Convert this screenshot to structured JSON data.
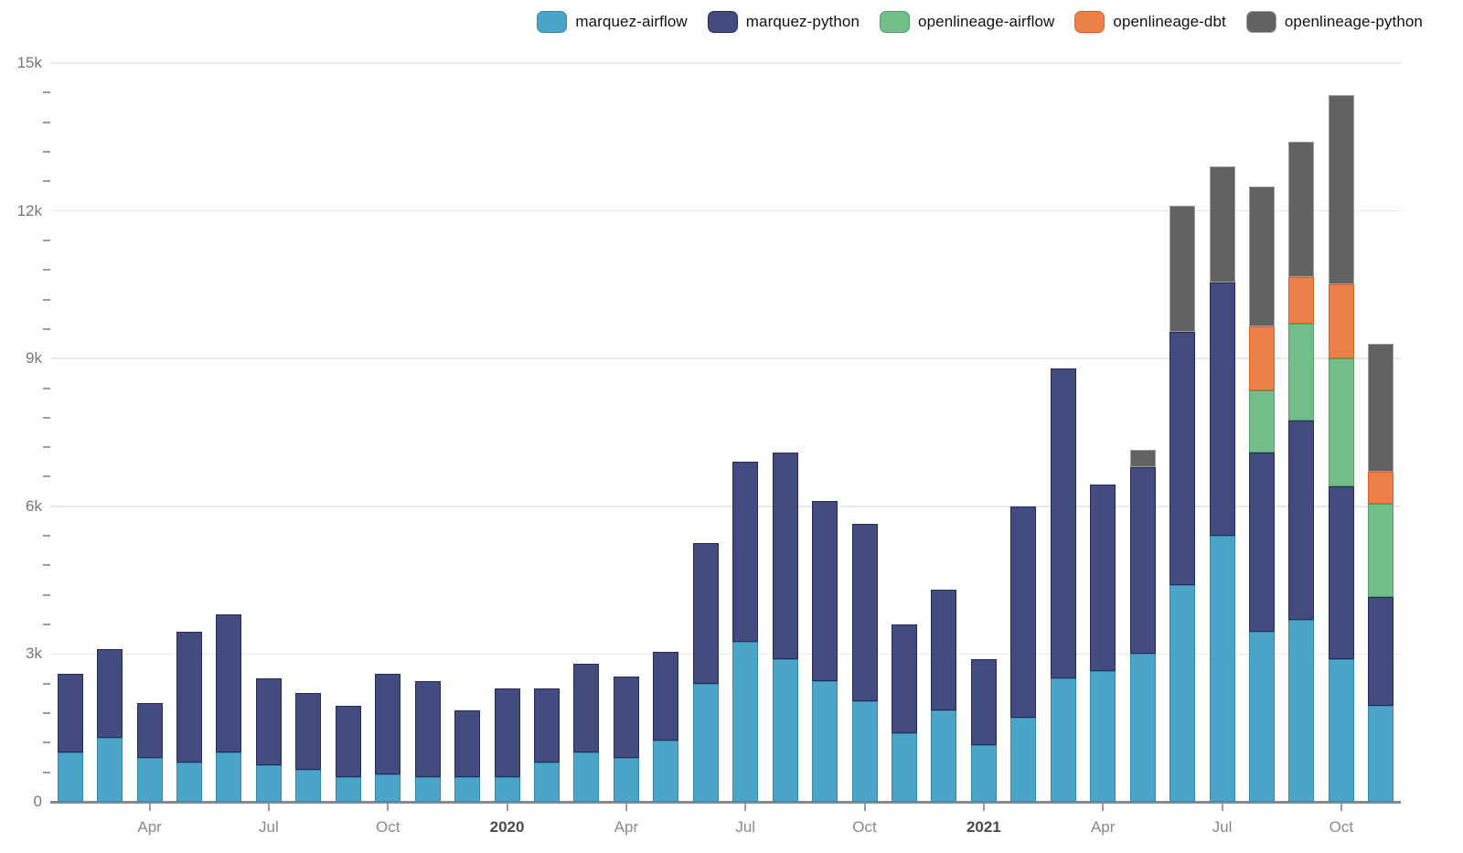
{
  "legend": {
    "items": [
      {
        "label": "marquez-airflow",
        "color": "#4aa5c9",
        "border": "#3389ae"
      },
      {
        "label": "marquez-python",
        "color": "#444c7f",
        "border": "#232c55"
      },
      {
        "label": "openlineage-airflow",
        "color": "#73bd8b",
        "border": "#51a06c"
      },
      {
        "label": "openlineage-dbt",
        "color": "#ec8049",
        "border": "#db6227"
      },
      {
        "label": "openlineage-python",
        "color": "#626262",
        "border": "#9e9e9e"
      }
    ]
  },
  "chart_data": {
    "type": "bar",
    "stacked": true,
    "title": "",
    "xlabel": "",
    "ylabel": "",
    "ylim": [
      0,
      15000
    ],
    "grid": true,
    "legend_position": "top-right",
    "y_major_ticks": [
      0,
      3000,
      6000,
      9000,
      12000,
      15000
    ],
    "y_tick_labels": [
      "0",
      "3k",
      "6k",
      "9k",
      "12k",
      "15k"
    ],
    "y_minor_step": 600,
    "categories": [
      "Feb 2019",
      "Mar 2019",
      "Apr 2019",
      "May 2019",
      "Jun 2019",
      "Jul 2019",
      "Aug 2019",
      "Sep 2019",
      "Oct 2019",
      "Nov 2019",
      "Dec 2019",
      "Jan 2020",
      "Feb 2020",
      "Mar 2020",
      "Apr 2020",
      "May 2020",
      "Jun 2020",
      "Jul 2020",
      "Aug 2020",
      "Sep 2020",
      "Oct 2020",
      "Nov 2020",
      "Dec 2020",
      "Jan 2021",
      "Feb 2021",
      "Mar 2021",
      "Apr 2021",
      "May 2021",
      "Jun 2021",
      "Jul 2021",
      "Aug 2021",
      "Sep 2021",
      "Oct 2021",
      "Nov 2021"
    ],
    "x_ticks": [
      {
        "index": 2,
        "label": "Apr",
        "year": false
      },
      {
        "index": 5,
        "label": "Jul",
        "year": false
      },
      {
        "index": 8,
        "label": "Oct",
        "year": false
      },
      {
        "index": 11,
        "label": "2020",
        "year": true
      },
      {
        "index": 14,
        "label": "Apr",
        "year": false
      },
      {
        "index": 17,
        "label": "Jul",
        "year": false
      },
      {
        "index": 20,
        "label": "Oct",
        "year": false
      },
      {
        "index": 23,
        "label": "2021",
        "year": true
      },
      {
        "index": 26,
        "label": "Apr",
        "year": false
      },
      {
        "index": 29,
        "label": "Jul",
        "year": false
      },
      {
        "index": 32,
        "label": "Oct",
        "year": false
      }
    ],
    "series": [
      {
        "name": "marquez-airflow",
        "color": "#4aa5c9",
        "border": "#3389ae",
        "values": [
          1000,
          1300,
          900,
          800,
          1000,
          750,
          650,
          500,
          550,
          500,
          500,
          500,
          800,
          1000,
          900,
          1250,
          2400,
          3250,
          2900,
          2450,
          2050,
          1400,
          1850,
          1150,
          1700,
          2500,
          2650,
          3000,
          4400,
          5400,
          3450,
          3700,
          2900,
          1950
        ]
      },
      {
        "name": "marquez-python",
        "color": "#444c7f",
        "border": "#232c55",
        "values": [
          1600,
          1800,
          1100,
          2650,
          2800,
          1750,
          1550,
          1450,
          2050,
          1950,
          1350,
          1800,
          1500,
          1800,
          1650,
          1800,
          2850,
          3650,
          4200,
          3650,
          3600,
          2200,
          2450,
          1750,
          4300,
          6300,
          3800,
          3800,
          5150,
          5150,
          3650,
          4050,
          3500,
          2200
        ]
      },
      {
        "name": "openlineage-airflow",
        "color": "#73bd8b",
        "border": "#51a06c",
        "values": [
          0,
          0,
          0,
          0,
          0,
          0,
          0,
          0,
          0,
          0,
          0,
          0,
          0,
          0,
          0,
          0,
          0,
          0,
          0,
          0,
          0,
          0,
          0,
          0,
          0,
          0,
          0,
          0,
          0,
          0,
          1250,
          1950,
          2600,
          1900
        ]
      },
      {
        "name": "openlineage-dbt",
        "color": "#ec8049",
        "border": "#db6227",
        "values": [
          0,
          0,
          0,
          0,
          0,
          0,
          0,
          0,
          0,
          0,
          0,
          0,
          0,
          0,
          0,
          0,
          0,
          0,
          0,
          0,
          0,
          0,
          0,
          0,
          0,
          0,
          0,
          0,
          0,
          0,
          1300,
          950,
          1500,
          650
        ]
      },
      {
        "name": "openlineage-python",
        "color": "#626262",
        "border": "#9e9e9e",
        "values": [
          0,
          0,
          0,
          0,
          0,
          0,
          0,
          0,
          0,
          0,
          0,
          0,
          0,
          0,
          0,
          0,
          0,
          0,
          0,
          0,
          0,
          0,
          0,
          0,
          0,
          0,
          0,
          350,
          2550,
          2350,
          2850,
          2750,
          3850,
          2600
        ]
      }
    ]
  }
}
